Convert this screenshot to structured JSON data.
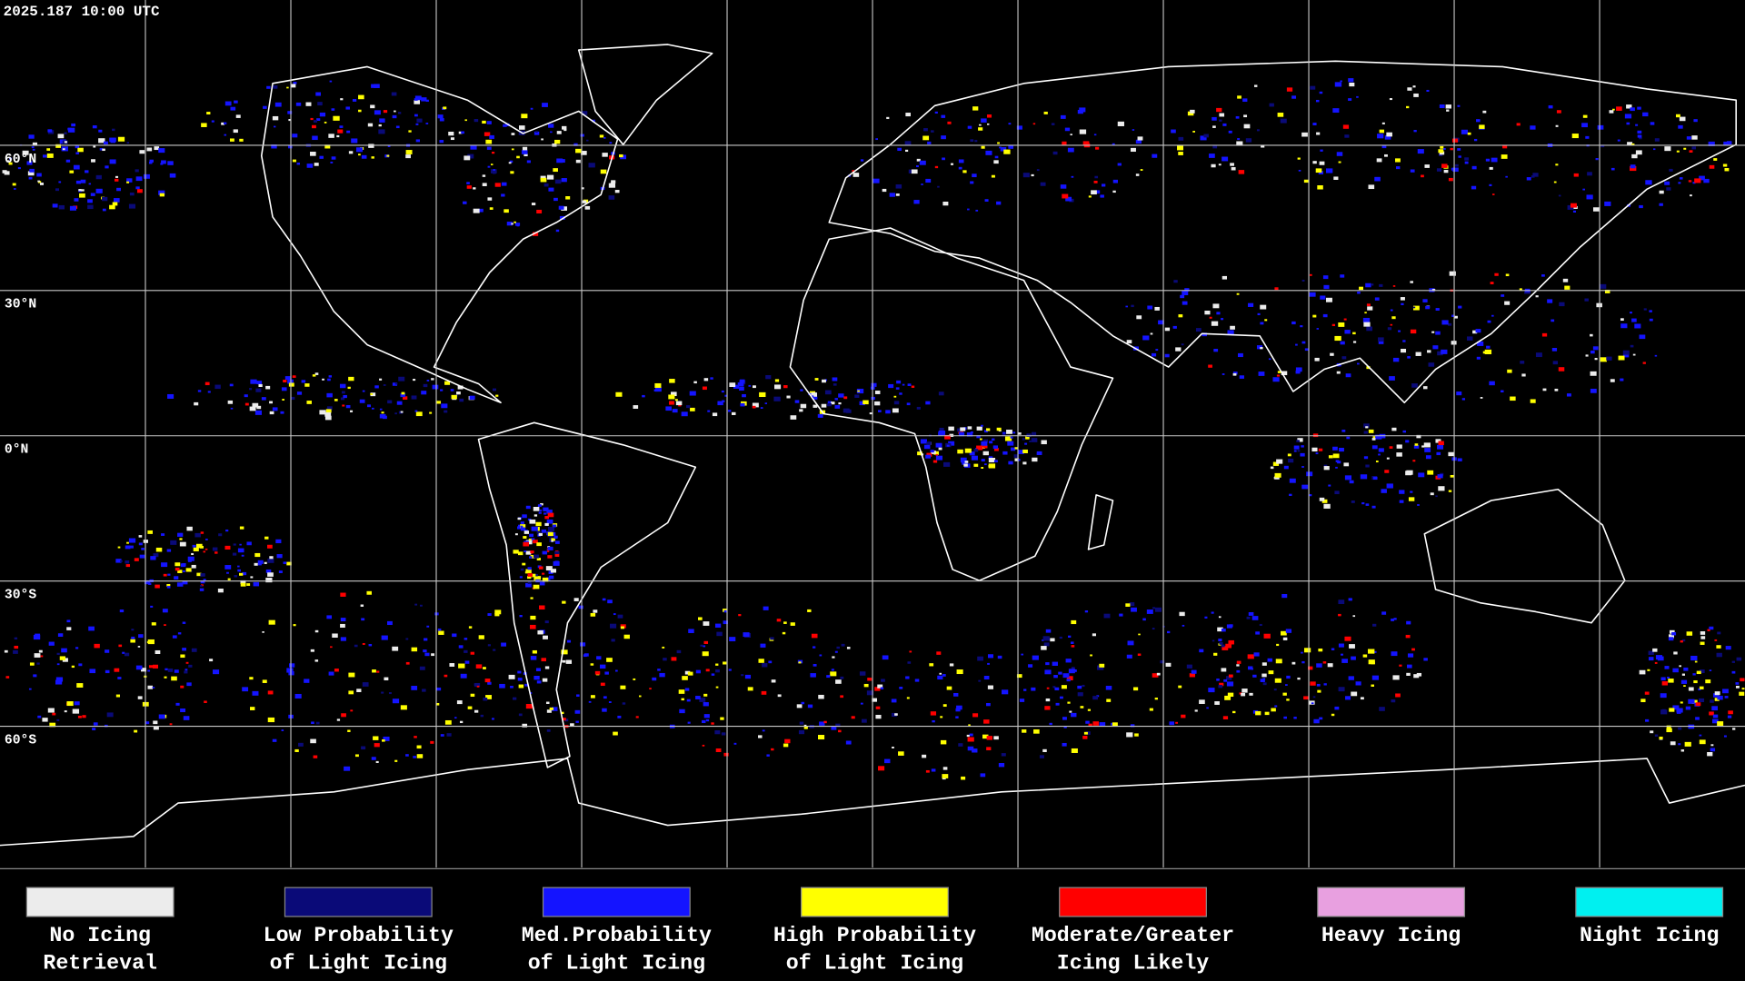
{
  "header": {
    "timestamp": "2025.187 10:00 UTC"
  },
  "map": {
    "latitude_labels": [
      "60°N",
      "30°N",
      "0°N",
      "30°S",
      "60°S"
    ]
  },
  "legend": {
    "items": [
      {
        "color": "#ececec",
        "label": [
          "No Icing",
          "Retrieval"
        ]
      },
      {
        "color": "#0a0a78",
        "label": [
          "Low Probability",
          "of Light Icing"
        ]
      },
      {
        "color": "#1414ff",
        "label": [
          "Med.Probability",
          "of Light Icing"
        ]
      },
      {
        "color": "#ffff00",
        "label": [
          "High Probability",
          "of Light Icing"
        ]
      },
      {
        "color": "#ff0000",
        "label": [
          "Moderate/Greater",
          "Icing Likely"
        ]
      },
      {
        "color": "#e8a0e0",
        "label": [
          "Heavy Icing"
        ]
      },
      {
        "color": "#00f0f0",
        "label": [
          "Night Icing"
        ]
      }
    ]
  }
}
